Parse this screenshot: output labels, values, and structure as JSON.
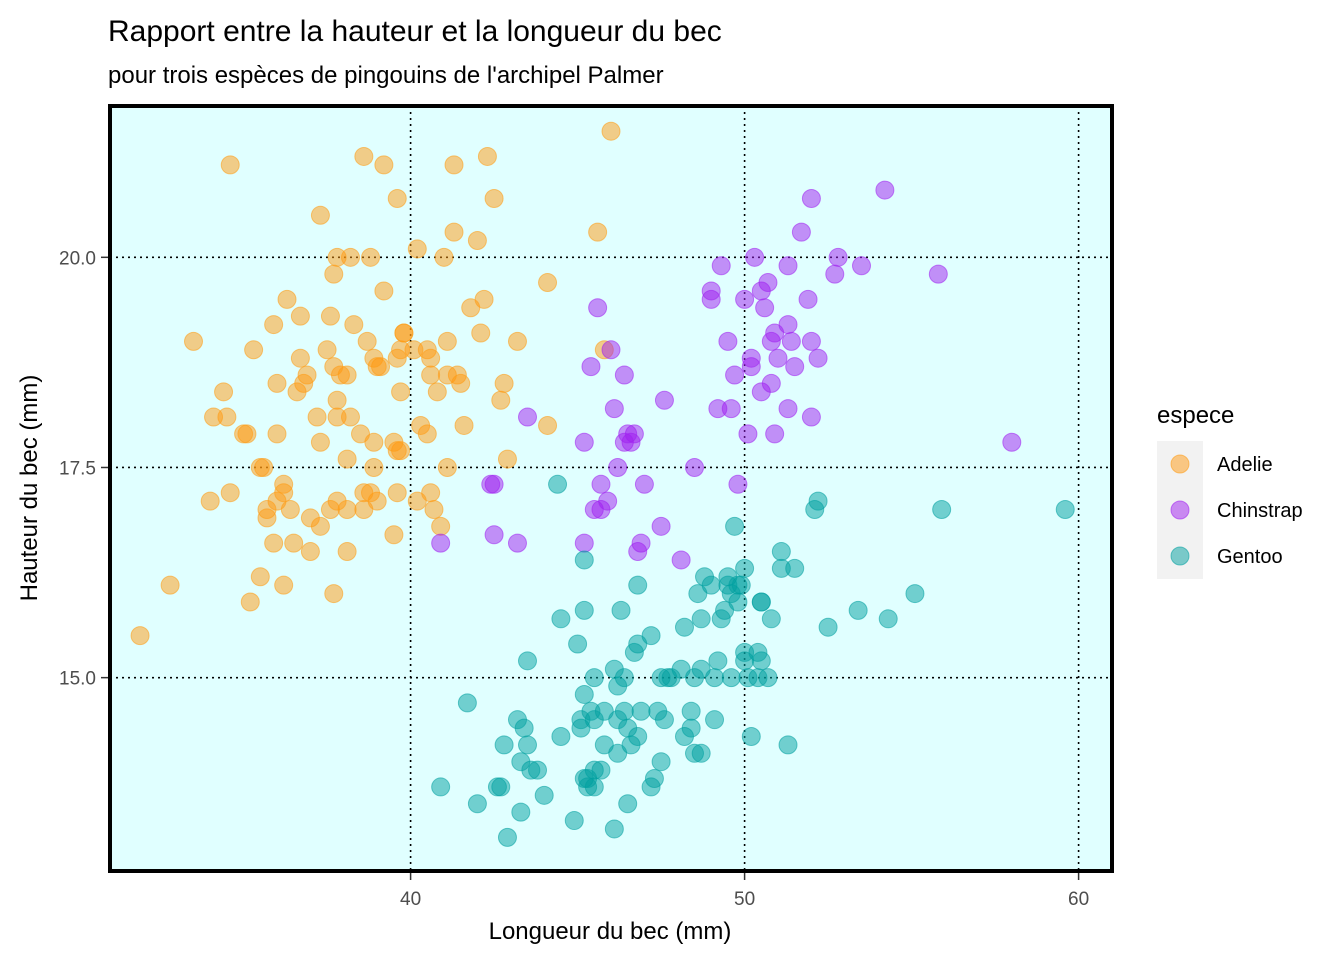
{
  "chart_data": {
    "type": "scatter",
    "title": "Rapport entre la hauteur et la longueur du bec",
    "subtitle": "pour trois espèces de pingouins de l'archipel Palmer",
    "xlabel": "Longueur du bec (mm)",
    "ylabel": "Hauteur du bec (mm)",
    "xlim": [
      31,
      61
    ],
    "ylim": [
      12.7,
      21.8
    ],
    "x_ticks": [
      40,
      50,
      60
    ],
    "x_tick_labels": [
      "40",
      "50",
      "60"
    ],
    "y_ticks": [
      15.0,
      17.5,
      20.0
    ],
    "y_tick_labels": [
      "15.0",
      "17.5",
      "20.0"
    ],
    "grid": true,
    "background": "#e0ffff",
    "legend": {
      "title": "espece",
      "position": "right"
    },
    "series": [
      {
        "name": "Adelie",
        "color": "#ff9a12",
        "points": [
          [
            31.9,
            15.5
          ],
          [
            32.8,
            16.1
          ],
          [
            33.5,
            19.0
          ],
          [
            34.0,
            17.1
          ],
          [
            34.1,
            18.1
          ],
          [
            34.4,
            18.4
          ],
          [
            34.5,
            18.1
          ],
          [
            34.6,
            21.1
          ],
          [
            34.6,
            17.2
          ],
          [
            35.0,
            17.9
          ],
          [
            35.1,
            17.9
          ],
          [
            35.2,
            15.9
          ],
          [
            35.3,
            18.9
          ],
          [
            35.5,
            16.2
          ],
          [
            35.5,
            17.5
          ],
          [
            35.6,
            17.5
          ],
          [
            35.7,
            16.9
          ],
          [
            35.7,
            17.0
          ],
          [
            35.9,
            16.6
          ],
          [
            35.9,
            19.2
          ],
          [
            36.0,
            17.9
          ],
          [
            36.0,
            17.1
          ],
          [
            36.0,
            18.5
          ],
          [
            36.2,
            16.1
          ],
          [
            36.2,
            17.3
          ],
          [
            36.2,
            17.2
          ],
          [
            36.3,
            19.5
          ],
          [
            36.4,
            17.0
          ],
          [
            36.5,
            16.6
          ],
          [
            36.6,
            18.4
          ],
          [
            36.7,
            19.3
          ],
          [
            36.7,
            18.8
          ],
          [
            36.8,
            18.5
          ],
          [
            36.9,
            18.6
          ],
          [
            37.0,
            16.9
          ],
          [
            37.0,
            16.5
          ],
          [
            37.2,
            18.1
          ],
          [
            37.3,
            16.8
          ],
          [
            37.3,
            20.5
          ],
          [
            37.3,
            17.8
          ],
          [
            37.5,
            18.9
          ],
          [
            37.6,
            19.3
          ],
          [
            37.6,
            17.0
          ],
          [
            37.7,
            18.7
          ],
          [
            37.7,
            19.8
          ],
          [
            37.7,
            16.0
          ],
          [
            37.8,
            18.3
          ],
          [
            37.8,
            18.1
          ],
          [
            37.8,
            17.1
          ],
          [
            37.8,
            20.0
          ],
          [
            37.9,
            18.6
          ],
          [
            38.1,
            18.6
          ],
          [
            38.1,
            16.5
          ],
          [
            38.1,
            17.6
          ],
          [
            38.1,
            17.0
          ],
          [
            38.2,
            18.1
          ],
          [
            38.2,
            20.0
          ],
          [
            38.3,
            19.2
          ],
          [
            38.5,
            17.9
          ],
          [
            38.6,
            21.2
          ],
          [
            38.6,
            17.2
          ],
          [
            38.6,
            17.0
          ],
          [
            38.7,
            19.0
          ],
          [
            38.8,
            17.2
          ],
          [
            38.8,
            20.0
          ],
          [
            38.9,
            17.8
          ],
          [
            38.9,
            18.8
          ],
          [
            39.0,
            17.1
          ],
          [
            39.0,
            18.7
          ],
          [
            39.1,
            18.7
          ],
          [
            39.2,
            19.6
          ],
          [
            39.2,
            21.1
          ],
          [
            39.5,
            16.7
          ],
          [
            39.5,
            17.8
          ],
          [
            39.6,
            18.8
          ],
          [
            39.6,
            17.7
          ],
          [
            39.6,
            17.2
          ],
          [
            39.6,
            20.7
          ],
          [
            39.7,
            18.4
          ],
          [
            39.7,
            18.9
          ],
          [
            39.7,
            17.7
          ],
          [
            39.8,
            19.1
          ],
          [
            40.1,
            18.9
          ],
          [
            40.2,
            20.1
          ],
          [
            40.2,
            17.1
          ],
          [
            40.3,
            18.0
          ],
          [
            40.5,
            18.9
          ],
          [
            40.5,
            17.9
          ],
          [
            40.6,
            18.6
          ],
          [
            40.6,
            18.8
          ],
          [
            40.6,
            17.2
          ],
          [
            40.7,
            17.0
          ],
          [
            40.8,
            18.4
          ],
          [
            40.9,
            16.8
          ],
          [
            41.0,
            20.0
          ],
          [
            41.1,
            18.6
          ],
          [
            41.1,
            17.5
          ],
          [
            41.1,
            19.0
          ],
          [
            41.3,
            21.1
          ],
          [
            41.3,
            20.3
          ],
          [
            41.4,
            18.6
          ],
          [
            41.5,
            18.5
          ],
          [
            41.6,
            18.0
          ],
          [
            41.8,
            19.4
          ],
          [
            42.0,
            20.2
          ],
          [
            42.1,
            19.1
          ],
          [
            42.2,
            19.5
          ],
          [
            42.3,
            21.2
          ],
          [
            42.5,
            20.7
          ],
          [
            42.7,
            18.3
          ],
          [
            42.8,
            18.5
          ],
          [
            42.9,
            17.6
          ],
          [
            43.2,
            19.0
          ],
          [
            44.1,
            19.7
          ],
          [
            44.1,
            18.0
          ],
          [
            45.6,
            20.3
          ],
          [
            45.8,
            18.9
          ],
          [
            46.0,
            21.5
          ],
          [
            39.8,
            19.1
          ],
          [
            38.9,
            17.5
          ]
        ]
      },
      {
        "name": "Chinstrap",
        "color": "#a020f0",
        "points": [
          [
            40.9,
            16.6
          ],
          [
            42.4,
            17.3
          ],
          [
            42.5,
            16.7
          ],
          [
            42.5,
            17.3
          ],
          [
            43.2,
            16.6
          ],
          [
            43.5,
            18.1
          ],
          [
            45.2,
            17.8
          ],
          [
            45.2,
            16.6
          ],
          [
            45.4,
            18.7
          ],
          [
            45.5,
            17.0
          ],
          [
            45.6,
            19.4
          ],
          [
            45.7,
            17.0
          ],
          [
            45.7,
            17.3
          ],
          [
            45.9,
            17.1
          ],
          [
            46.0,
            18.9
          ],
          [
            46.1,
            18.2
          ],
          [
            46.2,
            17.5
          ],
          [
            46.4,
            17.8
          ],
          [
            46.4,
            18.6
          ],
          [
            46.5,
            17.9
          ],
          [
            46.6,
            17.8
          ],
          [
            46.7,
            17.9
          ],
          [
            46.8,
            16.5
          ],
          [
            46.9,
            16.6
          ],
          [
            47.0,
            17.3
          ],
          [
            47.5,
            16.8
          ],
          [
            47.6,
            18.3
          ],
          [
            48.1,
            16.4
          ],
          [
            48.5,
            17.5
          ],
          [
            49.0,
            19.5
          ],
          [
            49.0,
            19.6
          ],
          [
            49.2,
            18.2
          ],
          [
            49.3,
            19.9
          ],
          [
            49.5,
            19.0
          ],
          [
            49.6,
            18.2
          ],
          [
            49.7,
            18.6
          ],
          [
            49.8,
            17.3
          ],
          [
            50.0,
            19.5
          ],
          [
            50.1,
            17.9
          ],
          [
            50.2,
            18.8
          ],
          [
            50.2,
            18.7
          ],
          [
            50.3,
            20.0
          ],
          [
            50.5,
            18.4
          ],
          [
            50.5,
            19.6
          ],
          [
            50.6,
            19.4
          ],
          [
            50.7,
            19.7
          ],
          [
            50.8,
            18.5
          ],
          [
            50.8,
            19.0
          ],
          [
            50.9,
            17.9
          ],
          [
            50.9,
            19.1
          ],
          [
            51.0,
            18.8
          ],
          [
            51.3,
            18.2
          ],
          [
            51.3,
            19.2
          ],
          [
            51.3,
            19.9
          ],
          [
            51.4,
            19.0
          ],
          [
            51.5,
            18.7
          ],
          [
            51.7,
            20.3
          ],
          [
            51.9,
            19.5
          ],
          [
            52.0,
            18.1
          ],
          [
            52.0,
            19.0
          ],
          [
            52.0,
            20.7
          ],
          [
            52.2,
            18.8
          ],
          [
            52.7,
            19.8
          ],
          [
            52.8,
            20.0
          ],
          [
            53.5,
            19.9
          ],
          [
            54.2,
            20.8
          ],
          [
            55.8,
            19.8
          ],
          [
            58.0,
            17.8
          ]
        ]
      },
      {
        "name": "Gentoo",
        "color": "#00a0a0",
        "points": [
          [
            40.9,
            13.7
          ],
          [
            41.7,
            14.7
          ],
          [
            42.0,
            13.5
          ],
          [
            42.6,
            13.7
          ],
          [
            42.7,
            13.7
          ],
          [
            42.8,
            14.2
          ],
          [
            42.9,
            13.1
          ],
          [
            43.2,
            14.5
          ],
          [
            43.3,
            14.0
          ],
          [
            43.3,
            13.4
          ],
          [
            43.4,
            14.4
          ],
          [
            43.5,
            14.2
          ],
          [
            43.5,
            15.2
          ],
          [
            43.6,
            13.9
          ],
          [
            43.8,
            13.9
          ],
          [
            44.0,
            13.6
          ],
          [
            44.4,
            17.3
          ],
          [
            44.5,
            14.3
          ],
          [
            44.5,
            15.7
          ],
          [
            44.9,
            13.3
          ],
          [
            45.0,
            15.4
          ],
          [
            45.1,
            14.5
          ],
          [
            45.1,
            14.4
          ],
          [
            45.2,
            13.8
          ],
          [
            45.2,
            14.8
          ],
          [
            45.2,
            15.8
          ],
          [
            45.2,
            16.4
          ],
          [
            45.3,
            13.7
          ],
          [
            45.3,
            13.8
          ],
          [
            45.4,
            14.6
          ],
          [
            45.5,
            13.7
          ],
          [
            45.5,
            14.5
          ],
          [
            45.5,
            13.9
          ],
          [
            45.5,
            15.0
          ],
          [
            45.7,
            13.9
          ],
          [
            45.8,
            14.2
          ],
          [
            45.8,
            14.6
          ],
          [
            46.1,
            13.2
          ],
          [
            46.1,
            15.1
          ],
          [
            46.2,
            14.5
          ],
          [
            46.2,
            14.1
          ],
          [
            46.2,
            14.9
          ],
          [
            46.3,
            15.8
          ],
          [
            46.4,
            14.6
          ],
          [
            46.4,
            15.0
          ],
          [
            46.5,
            14.4
          ],
          [
            46.5,
            13.5
          ],
          [
            46.6,
            14.2
          ],
          [
            46.7,
            15.3
          ],
          [
            46.8,
            16.1
          ],
          [
            46.8,
            15.4
          ],
          [
            46.8,
            14.3
          ],
          [
            46.9,
            14.6
          ],
          [
            47.2,
            13.7
          ],
          [
            47.2,
            15.5
          ],
          [
            47.3,
            13.8
          ],
          [
            47.4,
            14.6
          ],
          [
            47.5,
            14.0
          ],
          [
            47.5,
            15.0
          ],
          [
            47.6,
            14.5
          ],
          [
            47.7,
            15.0
          ],
          [
            47.8,
            15.0
          ],
          [
            48.1,
            15.1
          ],
          [
            48.2,
            14.3
          ],
          [
            48.2,
            15.6
          ],
          [
            48.4,
            14.4
          ],
          [
            48.4,
            14.6
          ],
          [
            48.5,
            14.1
          ],
          [
            48.5,
            15.0
          ],
          [
            48.6,
            16.0
          ],
          [
            48.7,
            14.1
          ],
          [
            48.7,
            15.1
          ],
          [
            48.7,
            15.7
          ],
          [
            48.8,
            16.2
          ],
          [
            49.0,
            16.1
          ],
          [
            49.1,
            14.5
          ],
          [
            49.1,
            15.0
          ],
          [
            49.2,
            15.2
          ],
          [
            49.3,
            15.7
          ],
          [
            49.4,
            15.8
          ],
          [
            49.5,
            16.2
          ],
          [
            49.5,
            16.1
          ],
          [
            49.6,
            15.0
          ],
          [
            49.6,
            16.0
          ],
          [
            49.7,
            16.8
          ],
          [
            49.8,
            15.9
          ],
          [
            49.8,
            16.1
          ],
          [
            49.9,
            16.1
          ],
          [
            50.0,
            15.2
          ],
          [
            50.0,
            15.3
          ],
          [
            50.0,
            16.3
          ],
          [
            50.1,
            15.0
          ],
          [
            50.2,
            14.3
          ],
          [
            50.4,
            15.0
          ],
          [
            50.4,
            15.3
          ],
          [
            50.5,
            15.2
          ],
          [
            50.5,
            15.9
          ],
          [
            50.5,
            15.9
          ],
          [
            50.7,
            15.0
          ],
          [
            50.8,
            15.7
          ],
          [
            51.1,
            16.3
          ],
          [
            51.1,
            16.5
          ],
          [
            51.3,
            14.2
          ],
          [
            51.5,
            16.3
          ],
          [
            52.1,
            17.0
          ],
          [
            52.2,
            17.1
          ],
          [
            52.5,
            15.6
          ],
          [
            53.4,
            15.8
          ],
          [
            54.3,
            15.7
          ],
          [
            55.1,
            16.0
          ],
          [
            55.9,
            17.0
          ],
          [
            59.6,
            17.0
          ]
        ]
      }
    ]
  }
}
